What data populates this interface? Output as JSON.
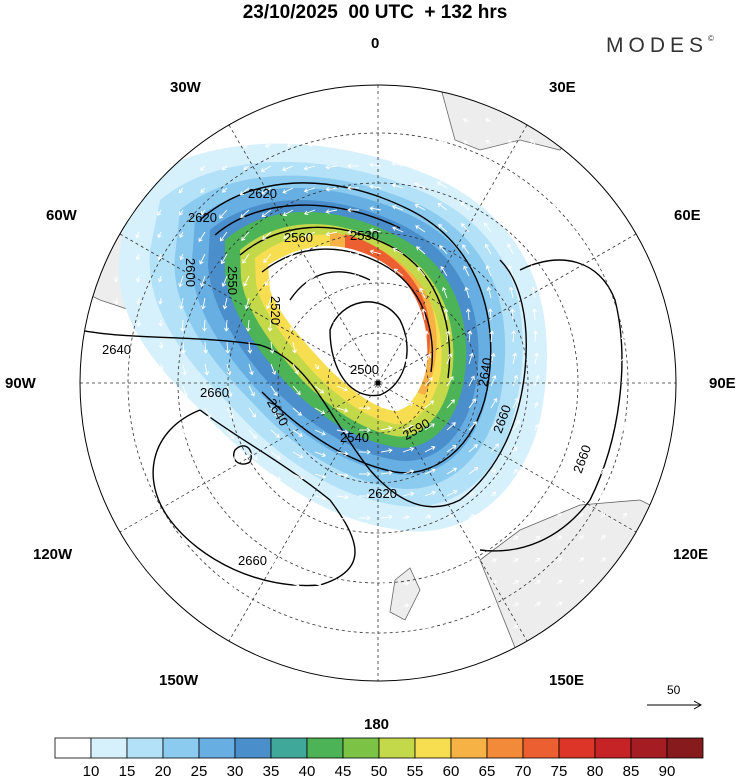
{
  "header": {
    "title": "23/10/2025  00 UTC  + 132 hrs",
    "brand": "MODES",
    "brand_mark": "©"
  },
  "longitude_labels": [
    {
      "id": "lon-0",
      "text": "0"
    },
    {
      "id": "lon-30e",
      "text": "30E"
    },
    {
      "id": "lon-60e",
      "text": "60E"
    },
    {
      "id": "lon-90e",
      "text": "90E"
    },
    {
      "id": "lon-120e",
      "text": "120E"
    },
    {
      "id": "lon-150e",
      "text": "150E"
    },
    {
      "id": "lon-180",
      "text": "180"
    },
    {
      "id": "lon-150w",
      "text": "150W"
    },
    {
      "id": "lon-120w",
      "text": "120W"
    },
    {
      "id": "lon-90w",
      "text": "90W"
    },
    {
      "id": "lon-60w",
      "text": "60W"
    },
    {
      "id": "lon-30w",
      "text": "30W"
    }
  ],
  "contour_labels": [
    "2620",
    "2620",
    "2600",
    "2560",
    "2530",
    "2550",
    "2520",
    "2640",
    "2660",
    "2500",
    "2640",
    "2540",
    "2590",
    "2640",
    "2620",
    "2660",
    "2660",
    "2660"
  ],
  "vector_scale": {
    "label": "50"
  },
  "colorbar": {
    "values": [
      "10",
      "15",
      "20",
      "25",
      "30",
      "35",
      "40",
      "45",
      "50",
      "55",
      "60",
      "65",
      "70",
      "75",
      "80",
      "85",
      "90"
    ],
    "colors": [
      "#ffffff",
      "#d6f0fc",
      "#b3e1f7",
      "#8ccbf0",
      "#67afe3",
      "#4a8fcc",
      "#3fa89a",
      "#4cb356",
      "#7cc244",
      "#c4d94a",
      "#f7de50",
      "#f7b245",
      "#f28a3a",
      "#ec5f30",
      "#dd3528",
      "#c62326",
      "#a51c22",
      "#861a1c"
    ],
    "colors_note": ""
  },
  "colors": {
    "land": "#eeeeee",
    "coast": "#555555",
    "grid": "#333333",
    "contour": "#000000",
    "wind_arrows": "#ffffff"
  }
}
